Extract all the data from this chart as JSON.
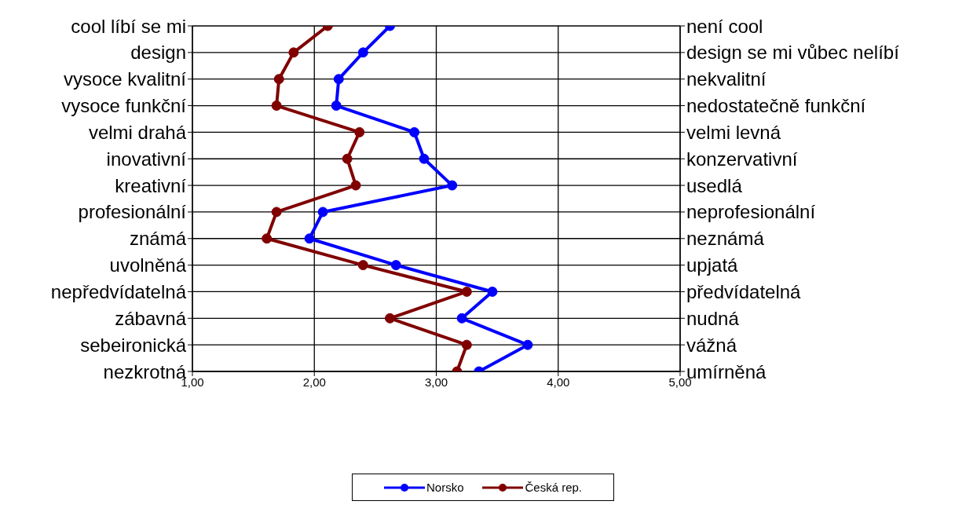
{
  "chart_data": {
    "type": "line",
    "orientation": "horizontal",
    "categories": [
      "cool líbí se mi",
      "design",
      "vysoce kvalitní",
      "vysoce funkční",
      "velmi drahá",
      "inovativní",
      "kreativní",
      "profesionální",
      "známá",
      "uvolněná",
      "nepředvídatelná",
      "zábavná",
      "sebeironická",
      "nezkrotná"
    ],
    "y2_categories": [
      "není cool",
      "design se mi vůbec nelíbí",
      "nekvalitní",
      "nedostatečně funkční",
      "velmi levná",
      "konzervativní",
      "usedlá",
      "neprofesionální",
      "neznámá",
      "upjatá",
      "předvídatelná",
      "nudná",
      "vážná",
      "umírněná"
    ],
    "series": [
      {
        "name": "Norsko",
        "color": "#0000ff",
        "values": [
          2.62,
          2.4,
          2.2,
          2.18,
          2.82,
          2.9,
          3.13,
          2.07,
          1.96,
          2.67,
          3.46,
          3.21,
          3.75,
          3.35
        ]
      },
      {
        "name": "Česká rep.",
        "color": "#800000",
        "values": [
          2.11,
          1.83,
          1.71,
          1.69,
          2.37,
          2.27,
          2.34,
          1.69,
          1.61,
          2.4,
          3.25,
          2.62,
          3.25,
          3.17
        ]
      }
    ],
    "xlim": [
      1,
      5
    ],
    "xticks": [
      {
        "value": 1,
        "label": "1,00"
      },
      {
        "value": 2,
        "label": "2,00"
      },
      {
        "value": 3,
        "label": "3,00"
      },
      {
        "value": 4,
        "label": "4,00"
      },
      {
        "value": 5,
        "label": "5,00"
      }
    ],
    "grid": true,
    "legend": "bottom",
    "marker": "circle",
    "line_style": "solid"
  }
}
